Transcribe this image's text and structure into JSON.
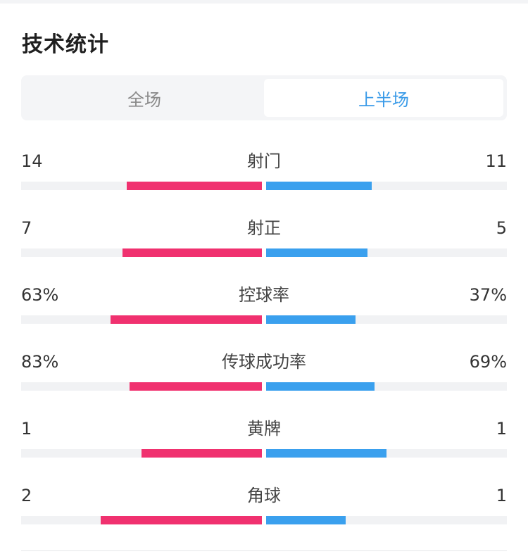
{
  "title": "技术统计",
  "tabs": [
    {
      "label": "全场",
      "active": false
    },
    {
      "label": "上半场",
      "active": true
    }
  ],
  "colors": {
    "home_bar": "#f0316f",
    "away_bar": "#3aa0ee",
    "active_tab": "#3a9be8"
  },
  "stats": [
    {
      "label": "射门",
      "home": "14",
      "away": "11",
      "home_fill": 0.56,
      "away_fill": 0.44
    },
    {
      "label": "射正",
      "home": "7",
      "away": "5",
      "home_fill": 0.58,
      "away_fill": 0.42
    },
    {
      "label": "控球率",
      "home": "63%",
      "away": "37%",
      "home_fill": 0.63,
      "away_fill": 0.37
    },
    {
      "label": "传球成功率",
      "home": "83%",
      "away": "69%",
      "home_fill": 0.55,
      "away_fill": 0.45
    },
    {
      "label": "黄牌",
      "home": "1",
      "away": "1",
      "home_fill": 0.5,
      "away_fill": 0.5
    },
    {
      "label": "角球",
      "home": "2",
      "away": "1",
      "home_fill": 0.67,
      "away_fill": 0.33
    }
  ]
}
